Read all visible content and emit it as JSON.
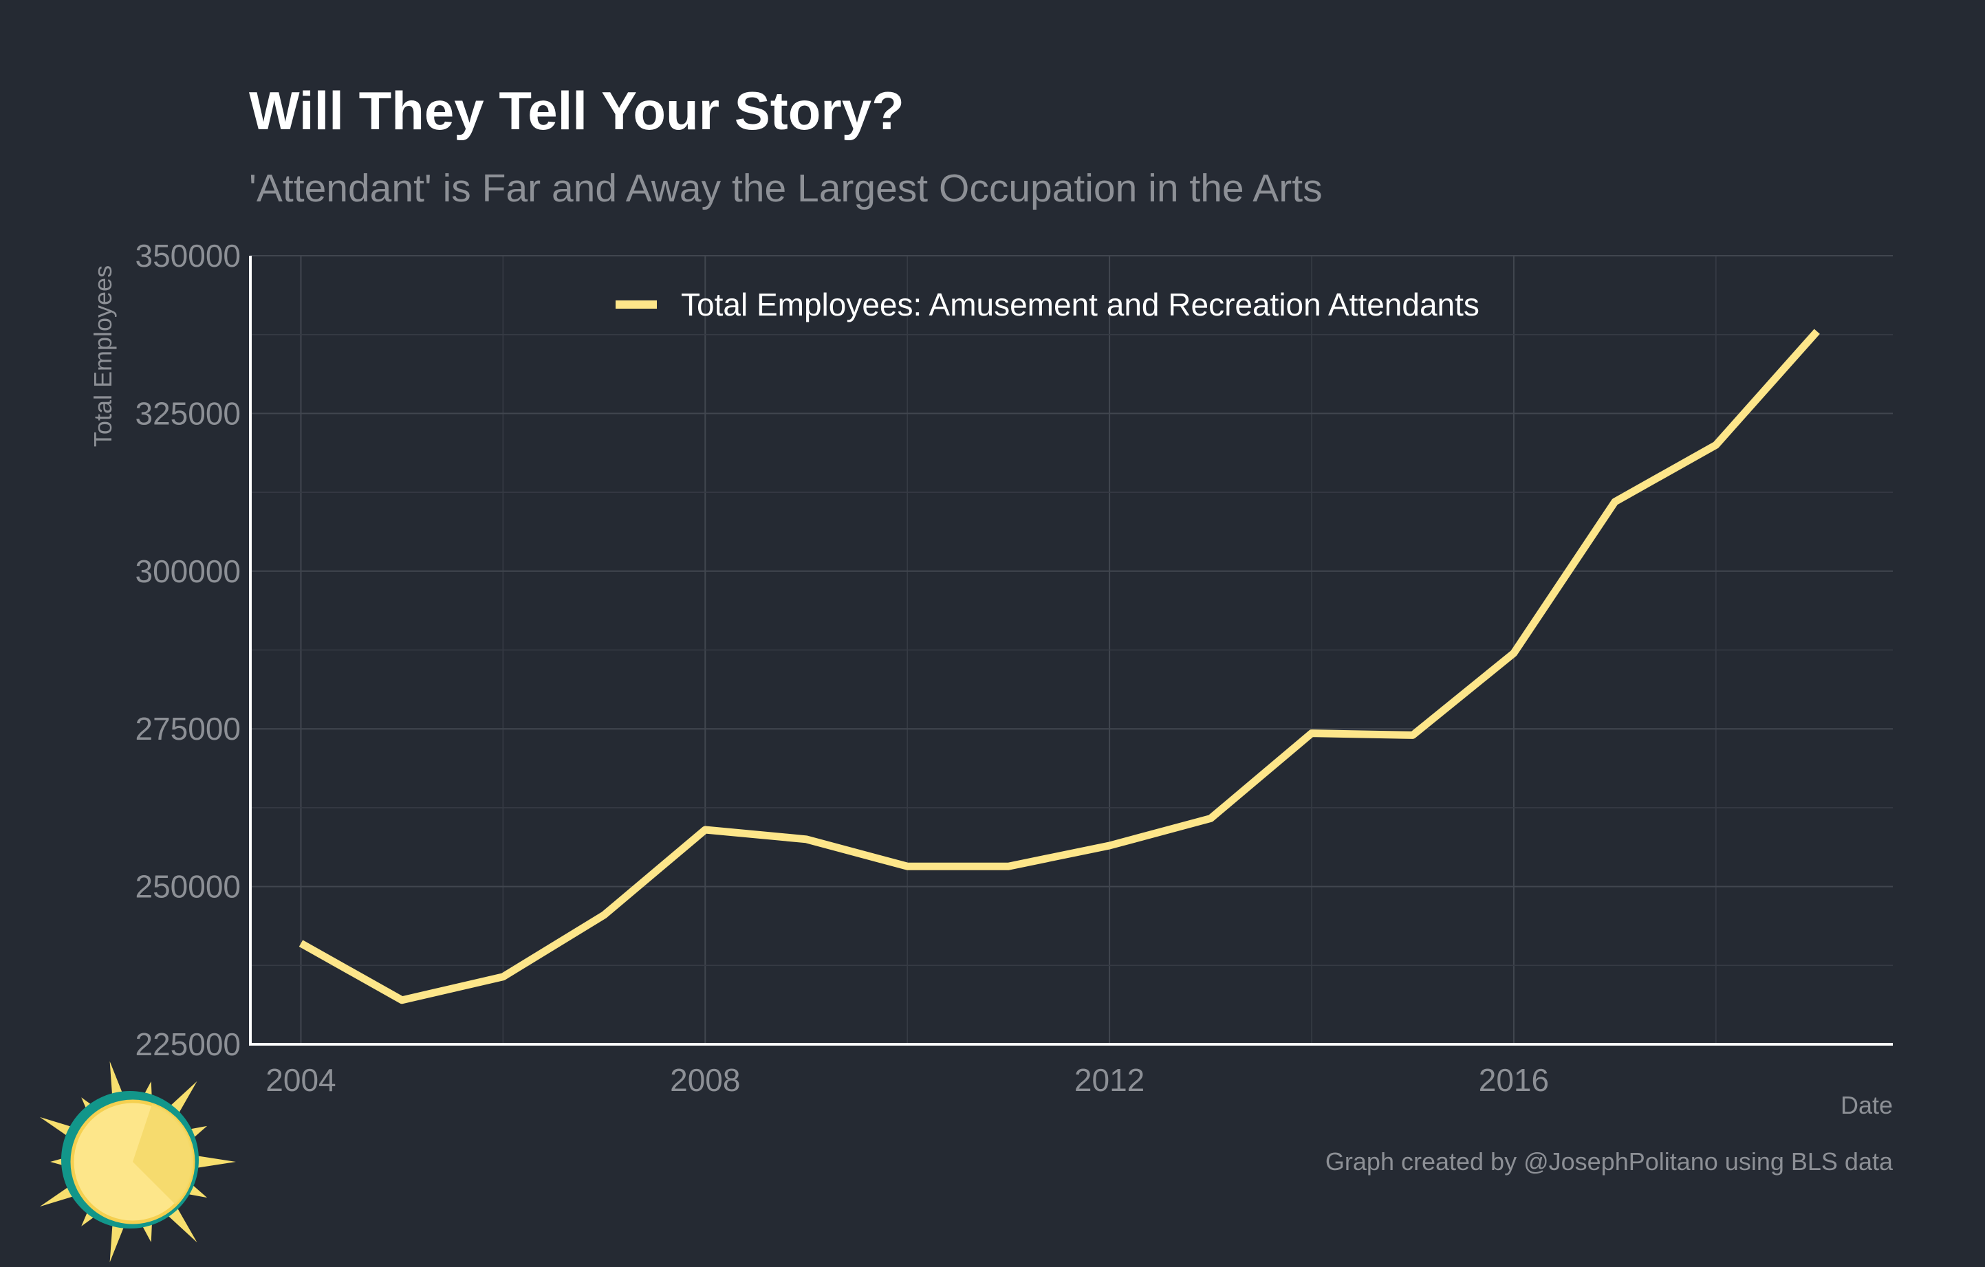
{
  "colors": {
    "background": "#252a33",
    "line": "#fde68a",
    "grid_major": "#41464f",
    "grid_minor": "#363b44",
    "muted_text": "#8d9096",
    "logo_sun": "#f7df6e",
    "logo_ring": "#12968a"
  },
  "logo": {
    "icon": "sun-logo-icon"
  },
  "chart_data": {
    "type": "line",
    "title": "Will They Tell Your Story?",
    "subtitle": "'Attendant' is Far and Away the Largest Occupation in the Arts",
    "xlabel": "Date",
    "ylabel": "Total Employees",
    "caption": "Graph created by @JosephPolitano using BLS data",
    "xlim": [
      2003.5,
      2019.75
    ],
    "ylim": [
      225000,
      350000
    ],
    "x_ticks": [
      2004,
      2008,
      2012,
      2016
    ],
    "y_ticks": [
      225000,
      250000,
      275000,
      300000,
      325000,
      350000
    ],
    "grid": true,
    "legend_position": "top-center",
    "series": [
      {
        "name": "Total Employees: Amusement and Recreation Attendants",
        "color": "#fde68a",
        "x": [
          2004,
          2005,
          2006,
          2007,
          2008,
          2009,
          2010,
          2011,
          2012,
          2013,
          2014,
          2015,
          2016,
          2017,
          2018,
          2019
        ],
        "values": [
          241000,
          232000,
          235700,
          245500,
          259000,
          257500,
          253200,
          253200,
          256500,
          260800,
          274300,
          274000,
          287000,
          311000,
          320000,
          338000
        ]
      }
    ]
  }
}
